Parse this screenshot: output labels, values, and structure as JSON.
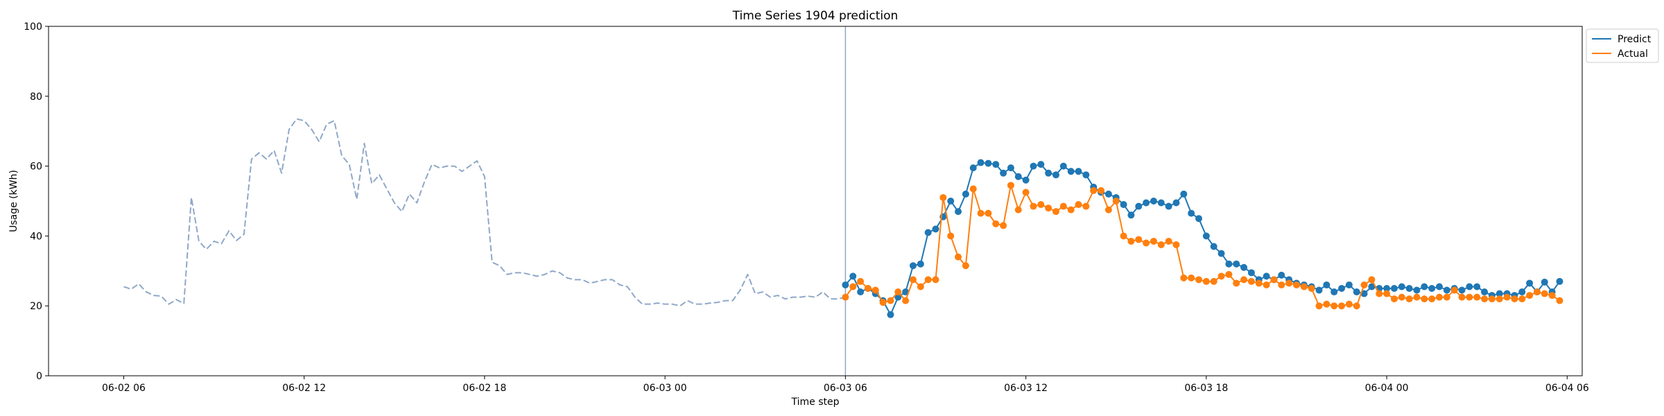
{
  "chart_data": {
    "type": "line",
    "title": "Time Series 1904 prediction",
    "xlabel": "Time step",
    "ylabel": "Usage (kWh)",
    "ylim": [
      0,
      100
    ],
    "yticks": [
      0,
      20,
      40,
      60,
      80,
      100
    ],
    "x_unit": "hours",
    "xlim": [
      -2.5,
      48.5
    ],
    "xticks": [
      {
        "x": 0,
        "label": "06-02 06"
      },
      {
        "x": 6,
        "label": "06-02 12"
      },
      {
        "x": 12,
        "label": "06-02 18"
      },
      {
        "x": 18,
        "label": "06-03 00"
      },
      {
        "x": 24,
        "label": "06-03 06"
      },
      {
        "x": 30,
        "label": "06-03 12"
      },
      {
        "x": 36,
        "label": "06-03 18"
      },
      {
        "x": 42,
        "label": "06-04 00"
      },
      {
        "x": 48,
        "label": "06-04 06"
      }
    ],
    "forecast_start": 24,
    "step": 0.25,
    "legend": {
      "placement": "outside-top-right",
      "entries": [
        "Predict",
        "Actual"
      ]
    },
    "colors": {
      "predict": "#1f77b4",
      "actual": "#ff7f0e",
      "history": "#8fa8c8",
      "divider": "#8fa8c8"
    },
    "series": [
      {
        "name": "History",
        "style": "dashed",
        "x_start": 0,
        "values": [
          25.5,
          24.8,
          26.3,
          24.0,
          23.0,
          22.8,
          20.5,
          21.8,
          20.7,
          51.0,
          38.5,
          36.2,
          38.5,
          37.8,
          41.5,
          38.7,
          40.5,
          62.0,
          63.8,
          62.0,
          64.5,
          58.0,
          70.5,
          73.5,
          73.0,
          70.5,
          67.0,
          72.0,
          73.0,
          63.0,
          60.5,
          50.5,
          66.5,
          55.0,
          57.5,
          53.5,
          49.5,
          47.0,
          52.0,
          49.5,
          55.5,
          60.5,
          59.5,
          60.0,
          60.0,
          58.5,
          60.0,
          61.5,
          57.0,
          32.5,
          31.5,
          29.0,
          29.5,
          29.5,
          29.0,
          28.5,
          29.0,
          30.0,
          29.5,
          28.0,
          27.5,
          27.5,
          26.5,
          27.0,
          27.5,
          27.5,
          26.0,
          25.5,
          22.5,
          20.5,
          20.5,
          20.8,
          20.5,
          20.5,
          20.0,
          21.5,
          20.5,
          20.5,
          20.8,
          21.0,
          21.5,
          21.5,
          24.5,
          29.0,
          23.5,
          24.0,
          22.5,
          23.0,
          22.0,
          22.5,
          22.5,
          22.8,
          22.5,
          24.0,
          22.0,
          22.0,
          22.5
        ]
      },
      {
        "name": "Predict",
        "style": "solid-markers",
        "x_start": 24,
        "values": [
          26.0,
          28.5,
          24.0,
          25.0,
          23.5,
          21.5,
          17.5,
          22.5,
          24.0,
          31.5,
          32.0,
          41.0,
          42.0,
          45.5,
          50.0,
          47.0,
          52.0,
          59.5,
          61.0,
          60.8,
          60.5,
          58.0,
          59.5,
          57.0,
          56.0,
          60.0,
          60.5,
          58.0,
          57.5,
          60.0,
          58.5,
          58.5,
          57.5,
          54.0,
          52.5,
          52.0,
          51.0,
          49.0,
          46.0,
          48.5,
          49.5,
          50.0,
          49.5,
          48.5,
          49.5,
          52.0,
          46.5,
          45.0,
          40.0,
          37.0,
          35.0,
          32.0,
          32.0,
          31.0,
          29.5,
          27.5,
          28.5,
          27.5,
          28.8,
          27.5,
          26.5,
          26.0,
          25.5,
          24.5,
          26.0,
          24.0,
          25.0,
          26.0,
          24.0,
          23.5,
          25.5,
          25.0,
          25.0,
          25.0,
          25.5,
          25.0,
          24.5,
          25.5,
          25.0,
          25.5,
          24.5,
          25.0,
          24.5,
          25.5,
          25.5,
          24.0,
          23.0,
          23.5,
          23.5,
          23.0,
          24.0,
          26.5,
          24.0,
          26.8,
          24.0,
          27.0
        ]
      },
      {
        "name": "Actual",
        "style": "solid-markers",
        "x_start": 24,
        "values": [
          22.5,
          25.5,
          27.0,
          25.0,
          24.5,
          21.0,
          21.5,
          24.0,
          21.5,
          27.5,
          25.5,
          27.5,
          27.5,
          51.0,
          40.0,
          34.0,
          31.5,
          53.5,
          46.5,
          46.5,
          43.5,
          43.0,
          54.5,
          47.5,
          52.5,
          48.5,
          49.0,
          48.0,
          47.0,
          48.5,
          47.5,
          49.0,
          48.5,
          53.0,
          53.0,
          47.5,
          50.0,
          40.0,
          38.5,
          39.0,
          38.0,
          38.5,
          37.5,
          38.5,
          37.5,
          28.0,
          28.0,
          27.5,
          27.0,
          27.0,
          28.5,
          29.0,
          26.5,
          27.5,
          27.0,
          26.5,
          26.0,
          27.5,
          26.0,
          26.5,
          26.0,
          25.5,
          25.0,
          20.0,
          20.5,
          20.0,
          20.0,
          20.5,
          20.0,
          26.0,
          27.5,
          23.5,
          23.5,
          22.0,
          22.5,
          22.0,
          22.5,
          22.0,
          22.0,
          22.5,
          22.5,
          24.5,
          22.5,
          22.5,
          22.5,
          22.0,
          22.0,
          22.0,
          22.5,
          22.0,
          22.0,
          23.0,
          24.0,
          23.5,
          23.0,
          21.5
        ]
      }
    ]
  }
}
